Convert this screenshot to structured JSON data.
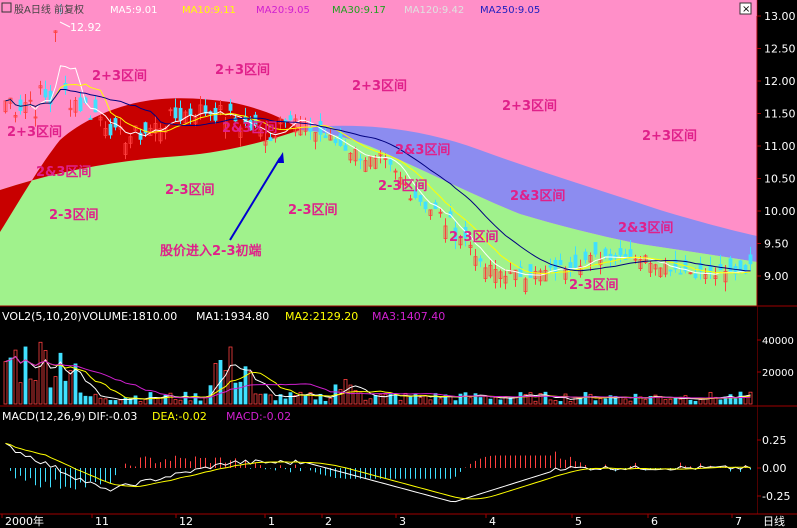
{
  "main_panel": {
    "legend": {
      "prefix": "股A日线 前复权",
      "ma5": "MA5:9.01",
      "ma10": "MA10:9.11",
      "ma20": "MA20:9.05",
      "ma_green": "MA30:9.17",
      "ma_gray": "MA120:9.42",
      "ma_blue": "MA250:9.05"
    },
    "peak_label": "12.92",
    "y_ticks": [
      "13.00",
      "12.50",
      "12.00",
      "11.50",
      "11.00",
      "10.50",
      "10.00",
      "9.50",
      "9.00"
    ],
    "region_labels": [
      {
        "text": "2+3区间",
        "tone": "pink"
      },
      {
        "text": "2+3区间",
        "tone": "pink"
      },
      {
        "text": "2+3区间",
        "tone": "pink"
      },
      {
        "text": "2+3区间",
        "tone": "pink"
      },
      {
        "text": "2+3区间",
        "tone": "pink"
      },
      {
        "text": "2+3区间",
        "tone": "pink"
      },
      {
        "text": "2&3区间",
        "tone": "pink"
      },
      {
        "text": "2&3区间",
        "tone": "pink"
      },
      {
        "text": "2&3区间",
        "tone": "pink"
      },
      {
        "text": "2&3区间",
        "tone": "pink"
      },
      {
        "text": "2&3区间",
        "tone": "pink"
      },
      {
        "text": "2-3区间",
        "tone": "pink"
      },
      {
        "text": "2-3区间",
        "tone": "pink"
      },
      {
        "text": "2-3区间",
        "tone": "pink"
      },
      {
        "text": "2-3区间",
        "tone": "pink"
      },
      {
        "text": "2-3区间",
        "tone": "pink"
      },
      {
        "text": "2-3区间",
        "tone": "pink"
      }
    ],
    "annotation": "股价进入2-3初端"
  },
  "volume_panel": {
    "title": "VOL2(5,10,20)",
    "volume": "VOLUME:1810.00",
    "ma1": "MA1:1934.80",
    "ma2": "MA2:2129.20",
    "ma3": "MA3:1407.40",
    "y_ticks": [
      "40000",
      "20000"
    ]
  },
  "macd_panel": {
    "title": "MACD(12,26,9)",
    "dif": "DIF:-0.03",
    "dea": "DEA:-0.02",
    "macd": "MACD:-0.02",
    "y_ticks": [
      "0.25",
      "0.00",
      "-0.25"
    ]
  },
  "x_axis": {
    "labels": [
      "2000年",
      "11",
      "12",
      "1",
      "2",
      "3",
      "4",
      "5",
      "6",
      "7"
    ],
    "period": "日线"
  },
  "colors": {
    "pink": "#FF8FC8",
    "green": "#A0F28C",
    "blue": "#8C8CF0",
    "darkred": "#C80000",
    "label": "#E0208A",
    "up": "#FF4040",
    "down": "#40E0FF"
  }
}
